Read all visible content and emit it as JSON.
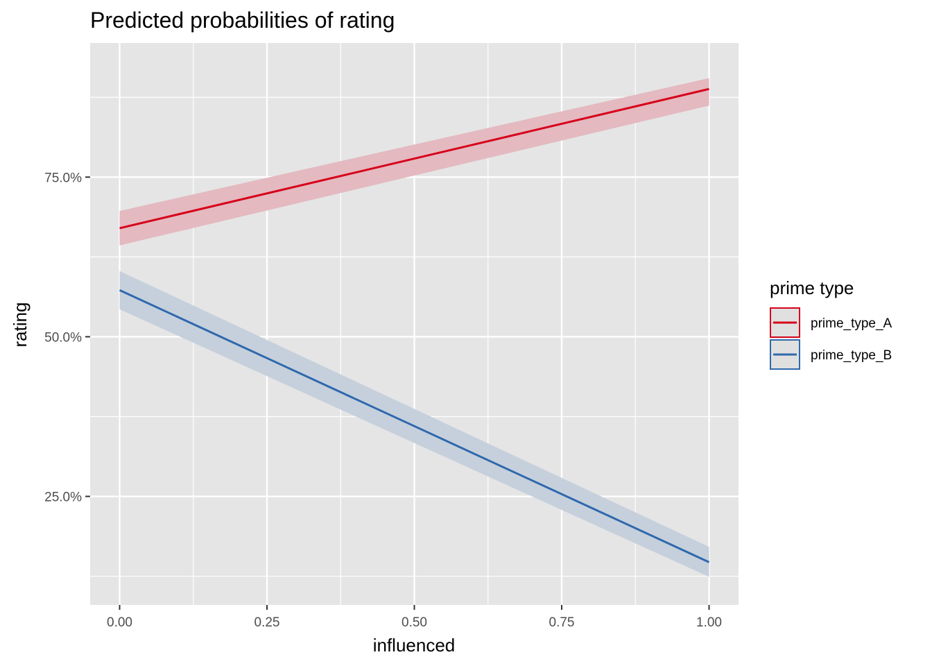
{
  "chart_data": {
    "type": "line",
    "title": "Predicted probabilities of rating",
    "xlabel": "influenced",
    "ylabel": "rating",
    "xlim": [
      -0.05,
      1.05
    ],
    "ylim": [
      0.08,
      0.96
    ],
    "x_ticks": [
      0.0,
      0.25,
      0.5,
      0.75,
      1.0
    ],
    "x_tick_labels": [
      "0.00",
      "0.25",
      "0.50",
      "0.75",
      "1.00"
    ],
    "x_minor": [
      0.125,
      0.375,
      0.625,
      0.875
    ],
    "y_ticks": [
      0.25,
      0.5,
      0.75
    ],
    "y_tick_labels": [
      "25.0%",
      "50.0%",
      "75.0%"
    ],
    "y_minor": [
      0.125,
      0.375,
      0.625,
      0.875
    ],
    "grid": true,
    "legend": {
      "title": "prime type",
      "position": "right"
    },
    "series": [
      {
        "name": "prime_type_A",
        "color": "#d7001a",
        "fill": "#e4b9c0",
        "x": [
          0.0,
          1.0
        ],
        "y": [
          0.67,
          0.888
        ],
        "lower": [
          0.643,
          0.862
        ],
        "upper": [
          0.697,
          0.905
        ]
      },
      {
        "name": "prime_type_B",
        "color": "#2f69ad",
        "fill": "#c6d0dc",
        "x": [
          0.0,
          1.0
        ],
        "y": [
          0.573,
          0.147
        ],
        "lower": [
          0.543,
          0.124
        ],
        "upper": [
          0.603,
          0.171
        ]
      }
    ]
  }
}
